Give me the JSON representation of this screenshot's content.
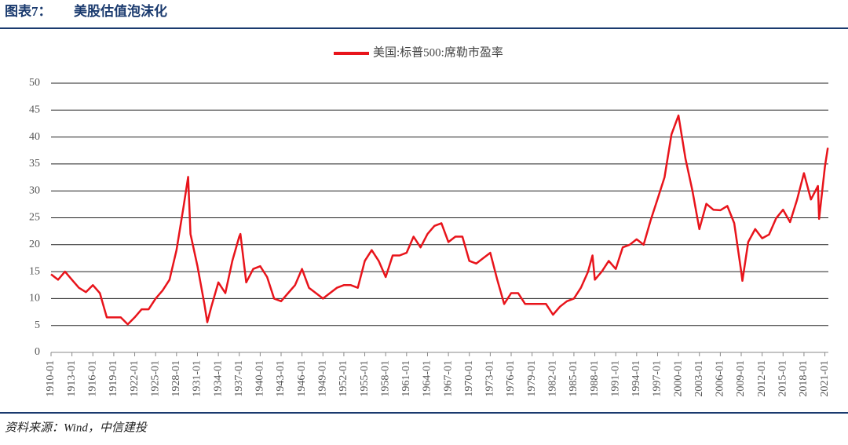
{
  "header": {
    "label": "图表7：",
    "title": "美股估值泡沫化"
  },
  "chart_data": {
    "type": "line",
    "x": [
      "1910-01",
      "1911-01",
      "1912-01",
      "1913-01",
      "1914-01",
      "1915-01",
      "1916-01",
      "1917-01",
      "1918-01",
      "1919-01",
      "1920-01",
      "1921-01",
      "1922-01",
      "1923-01",
      "1924-01",
      "1925-01",
      "1926-01",
      "1927-01",
      "1928-01",
      "1929-01",
      "1929-09",
      "1930-01",
      "1931-01",
      "1932-01",
      "1932-06",
      "1933-01",
      "1934-01",
      "1935-01",
      "1936-01",
      "1937-01",
      "1937-03",
      "1938-01",
      "1939-01",
      "1940-01",
      "1941-01",
      "1942-01",
      "1943-01",
      "1944-01",
      "1945-01",
      "1946-01",
      "1947-01",
      "1948-01",
      "1949-01",
      "1950-01",
      "1951-01",
      "1952-01",
      "1953-01",
      "1954-01",
      "1955-01",
      "1956-01",
      "1957-01",
      "1958-01",
      "1959-01",
      "1960-01",
      "1961-01",
      "1962-01",
      "1963-01",
      "1964-01",
      "1965-01",
      "1966-01",
      "1967-01",
      "1968-01",
      "1969-01",
      "1970-01",
      "1971-01",
      "1972-01",
      "1973-01",
      "1974-01",
      "1975-01",
      "1976-01",
      "1977-01",
      "1978-01",
      "1979-01",
      "1980-01",
      "1981-01",
      "1982-01",
      "1983-01",
      "1984-01",
      "1985-01",
      "1986-01",
      "1987-01",
      "1987-09",
      "1988-01",
      "1989-01",
      "1990-01",
      "1991-01",
      "1992-01",
      "1993-01",
      "1994-01",
      "1995-01",
      "1996-01",
      "1997-01",
      "1998-01",
      "1999-01",
      "2000-01",
      "2001-01",
      "2002-01",
      "2003-01",
      "2004-01",
      "2005-01",
      "2006-01",
      "2007-01",
      "2008-01",
      "2009-01",
      "2009-03",
      "2010-01",
      "2011-01",
      "2012-01",
      "2013-01",
      "2014-01",
      "2015-01",
      "2016-01",
      "2017-01",
      "2018-01",
      "2019-01",
      "2020-01",
      "2020-03",
      "2021-01",
      "2021-06"
    ],
    "series": [
      {
        "name": "美国:标普500:席勒市盈率",
        "color": "#e8141b",
        "values": [
          14.5,
          13.5,
          15,
          13.5,
          12,
          11.2,
          12.5,
          11,
          6.5,
          6.5,
          6.5,
          5.2,
          6.5,
          8,
          8,
          10,
          11.5,
          13.5,
          19,
          27,
          32.6,
          22,
          16,
          9,
          5.6,
          8.5,
          13,
          11,
          17,
          21.5,
          22,
          13,
          15.5,
          16,
          14,
          10,
          9.5,
          11,
          12.5,
          15.5,
          12,
          11,
          10,
          11,
          12,
          12.5,
          12.5,
          12,
          17,
          19,
          17,
          14,
          18,
          18,
          18.5,
          21.5,
          19.5,
          22,
          23.5,
          24,
          20.5,
          21.5,
          21.5,
          17,
          16.5,
          17.5,
          18.5,
          13.5,
          9,
          11,
          11,
          9,
          9,
          9,
          9,
          7,
          8.5,
          9.5,
          10,
          12,
          14.9,
          18,
          13.5,
          15,
          17,
          15.5,
          19.5,
          20,
          21,
          20,
          24.5,
          28.5,
          32.5,
          40.5,
          44,
          36,
          30,
          22.9,
          27.6,
          26.5,
          26.4,
          27.2,
          24,
          15,
          13.3,
          20.5,
          22.9,
          21.2,
          21.9,
          24.9,
          26.5,
          24.2,
          28.3,
          33.3,
          28.4,
          30.9,
          24.8,
          34.5,
          38
        ]
      }
    ],
    "xlim": [
      "1910-01",
      "2021-07"
    ],
    "xticks": [
      "1910-01",
      "1913-01",
      "1916-01",
      "1919-01",
      "1922-01",
      "1925-01",
      "1928-01",
      "1931-01",
      "1934-01",
      "1937-01",
      "1940-01",
      "1943-01",
      "1946-01",
      "1949-01",
      "1952-01",
      "1955-01",
      "1958-01",
      "1961-01",
      "1964-01",
      "1967-01",
      "1970-01",
      "1973-01",
      "1976-01",
      "1979-01",
      "1982-01",
      "1985-01",
      "1988-01",
      "1991-01",
      "1994-01",
      "1997-01",
      "2000-01",
      "2003-01",
      "2006-01",
      "2009-01",
      "2012-01",
      "2015-01",
      "2018-01",
      "2021-01"
    ],
    "ylim": [
      0,
      50
    ],
    "yticks": [
      0,
      5,
      10,
      15,
      20,
      25,
      30,
      35,
      40,
      45,
      50
    ],
    "grid": true,
    "legend": "top"
  },
  "source": "资料来源：Wind，中信建投"
}
